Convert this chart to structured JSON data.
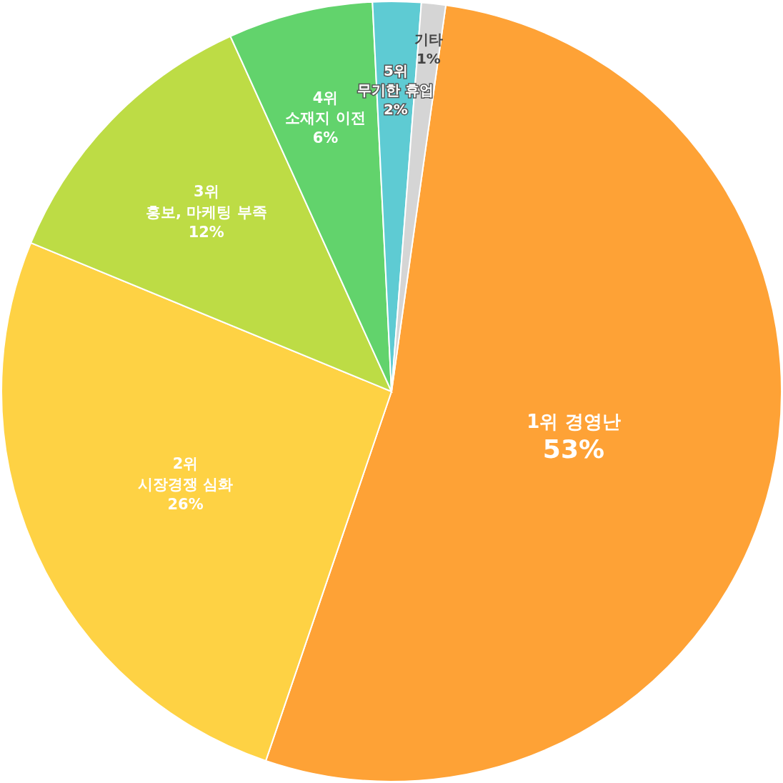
{
  "chart_data": {
    "type": "pie",
    "categories": [
      "1위 경영난",
      "2위\n시장경쟁 심화",
      "3위\n홍보, 마케팅 부족",
      "4위\n소재지 이전",
      "5위\n무기한 휴업",
      "기타"
    ],
    "values": [
      53,
      26,
      12,
      6,
      2,
      1
    ],
    "colors": [
      "#fea236",
      "#fed244",
      "#bddc45",
      "#62d36c",
      "#5ecbd3",
      "#d5d5d5"
    ],
    "value_labels": [
      "53%",
      "26%",
      "12%",
      "6%",
      "2%",
      "1%"
    ]
  }
}
